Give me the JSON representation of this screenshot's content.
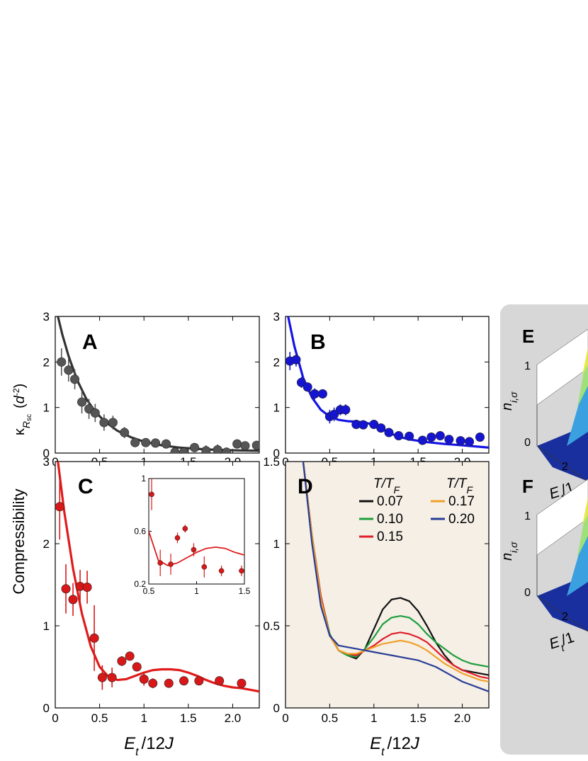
{
  "figure": {
    "ylabel_main": "Compressibility",
    "xlabel_AC": "E_t /12J",
    "xlabel_BD": "E_t /12J"
  },
  "chart_data": [
    {
      "id": "A",
      "type": "scatter",
      "panel_label": "A",
      "xlim": [
        0,
        2.3
      ],
      "ylim": [
        0,
        3
      ],
      "xticks": [
        "0",
        "0.5",
        "1",
        "1.5",
        "2.0"
      ],
      "yticks": [
        "0",
        "1",
        "2",
        "3"
      ],
      "ylabel": "κ_Rsc (d^-2)",
      "color": "#555555",
      "fit_color": "#333333",
      "x": [
        0.07,
        0.15,
        0.22,
        0.3,
        0.38,
        0.45,
        0.55,
        0.65,
        0.78,
        0.9,
        1.02,
        1.13,
        1.25,
        1.35,
        1.45,
        1.57,
        1.7,
        1.83,
        1.93,
        2.05,
        2.14,
        2.27
      ],
      "y": [
        2.0,
        1.82,
        1.62,
        1.12,
        0.97,
        0.88,
        0.67,
        0.67,
        0.45,
        0.23,
        0.23,
        0.22,
        0.2,
        0.02,
        0.02,
        0.12,
        0.05,
        0.07,
        0.02,
        0.2,
        0.16,
        0.17
      ],
      "err": [
        0.3,
        0.25,
        0.22,
        0.25,
        0.22,
        0.2,
        0.18,
        0.15,
        0.12,
        0.1,
        0.08,
        0.08,
        0.08,
        0.06,
        0.06,
        0.1,
        0.12,
        0.12,
        0.1,
        0.08,
        0.08,
        0.08
      ],
      "fit_x": [
        0.03,
        0.08,
        0.15,
        0.25,
        0.35,
        0.45,
        0.55,
        0.7,
        0.85,
        1.0,
        1.2,
        1.4,
        1.7,
        2.0,
        2.3
      ],
      "fit_y": [
        3.0,
        2.6,
        2.13,
        1.59,
        1.19,
        0.91,
        0.71,
        0.49,
        0.35,
        0.25,
        0.17,
        0.12,
        0.08,
        0.06,
        0.05
      ]
    },
    {
      "id": "B",
      "type": "scatter",
      "panel_label": "B",
      "xlim": [
        0,
        2.3
      ],
      "ylim": [
        0,
        3
      ],
      "xticks": [
        "0",
        "0.5",
        "1",
        "1.5",
        "2.0"
      ],
      "yticks": [
        "0",
        "1",
        "2",
        "3"
      ],
      "color": "#1414d2",
      "fit_color": "#1414e6",
      "x": [
        0.05,
        0.12,
        0.18,
        0.25,
        0.33,
        0.42,
        0.5,
        0.55,
        0.62,
        0.68,
        0.8,
        0.88,
        1.0,
        1.08,
        1.17,
        1.28,
        1.4,
        1.55,
        1.65,
        1.75,
        1.85,
        1.98,
        2.08,
        2.2
      ],
      "y": [
        2.02,
        2.05,
        1.55,
        1.45,
        1.3,
        1.3,
        0.8,
        0.85,
        0.95,
        0.95,
        0.63,
        0.62,
        0.63,
        0.55,
        0.45,
        0.38,
        0.37,
        0.28,
        0.35,
        0.38,
        0.3,
        0.27,
        0.25,
        0.35
      ],
      "err": [
        0.2,
        0.15,
        0.12,
        0.1,
        0.12,
        0.1,
        0.15,
        0.15,
        0.12,
        0.12,
        0.1,
        0.08,
        0.08,
        0.08,
        0.06,
        0.06,
        0.06,
        0.05,
        0.05,
        0.05,
        0.05,
        0.05,
        0.05,
        0.05
      ],
      "fit_x": [
        0.03,
        0.1,
        0.2,
        0.3,
        0.4,
        0.5,
        0.6,
        0.7,
        0.8,
        0.9,
        1.0,
        1.1,
        1.2,
        1.3,
        1.4,
        1.6,
        1.8,
        2.0,
        2.3
      ],
      "fit_y": [
        3.0,
        2.35,
        1.65,
        1.22,
        0.95,
        0.8,
        0.73,
        0.7,
        0.69,
        0.67,
        0.62,
        0.52,
        0.42,
        0.35,
        0.3,
        0.24,
        0.2,
        0.17,
        0.12
      ]
    },
    {
      "id": "C",
      "type": "scatter",
      "panel_label": "C",
      "xlim": [
        0,
        2.3
      ],
      "ylim": [
        0,
        3
      ],
      "xticks": [
        "0",
        "0.5",
        "1",
        "1.5",
        "2.0"
      ],
      "yticks": [
        "0",
        "1",
        "2",
        "3"
      ],
      "color": "#d81818",
      "fit_color": "#e01b1b",
      "x": [
        0.05,
        0.12,
        0.2,
        0.28,
        0.36,
        0.44,
        0.53,
        0.64,
        0.75,
        0.84,
        0.92,
        1.0,
        1.1,
        1.28,
        1.45,
        1.62,
        1.85,
        2.1
      ],
      "y": [
        2.45,
        1.45,
        1.32,
        1.48,
        1.47,
        0.85,
        0.37,
        0.37,
        0.57,
        0.63,
        0.5,
        0.35,
        0.3,
        0.3,
        0.33,
        0.33,
        0.33,
        0.3
      ],
      "err": [
        0.4,
        0.3,
        0.2,
        0.2,
        0.2,
        0.4,
        0.15,
        0.12,
        0.06,
        0.05,
        0.05,
        0.08,
        0.06,
        0.05,
        0.05,
        0.05,
        0.05,
        0.05
      ],
      "fit_x": [
        0.03,
        0.1,
        0.2,
        0.3,
        0.4,
        0.5,
        0.6,
        0.7,
        0.8,
        0.9,
        1.0,
        1.1,
        1.2,
        1.3,
        1.4,
        1.5,
        1.6,
        1.7,
        1.8,
        1.9,
        2.0,
        2.1,
        2.2,
        2.3
      ],
      "fit_y": [
        3.0,
        2.4,
        1.7,
        1.15,
        0.75,
        0.5,
        0.38,
        0.34,
        0.35,
        0.39,
        0.43,
        0.46,
        0.47,
        0.47,
        0.46,
        0.43,
        0.39,
        0.34,
        0.3,
        0.27,
        0.25,
        0.24,
        0.22,
        0.2
      ],
      "inset": {
        "xlim": [
          0.5,
          1.5
        ],
        "ylim": [
          0.2,
          1.0
        ],
        "xticks": [
          "0.5",
          "1",
          "1.5"
        ],
        "yticks": [
          "0.2",
          "0.6",
          "1"
        ],
        "x": [
          0.53,
          0.62,
          0.73,
          0.8,
          0.88,
          0.97,
          1.08,
          1.26,
          1.47
        ],
        "y": [
          0.88,
          0.36,
          0.35,
          0.55,
          0.62,
          0.46,
          0.33,
          0.3,
          0.3
        ],
        "err": [
          0.12,
          0.1,
          0.08,
          0.04,
          0.03,
          0.05,
          0.08,
          0.04,
          0.04
        ],
        "fit_x": [
          0.5,
          0.6,
          0.7,
          0.8,
          0.9,
          1.0,
          1.1,
          1.2,
          1.3,
          1.4,
          1.5
        ],
        "fit_y": [
          0.6,
          0.38,
          0.34,
          0.36,
          0.4,
          0.44,
          0.47,
          0.48,
          0.47,
          0.44,
          0.42
        ]
      }
    },
    {
      "id": "D",
      "type": "line",
      "panel_label": "D",
      "xlim": [
        0,
        2.3
      ],
      "ylim": [
        0,
        1.5
      ],
      "xticks": [
        "0",
        "0.5",
        "1",
        "1.5",
        "2.0"
      ],
      "yticks": [
        "0",
        "0.5",
        "1",
        "1.5"
      ],
      "background": "#f5efe6",
      "legend_title": "T/T_F",
      "x": [
        0.2,
        0.3,
        0.4,
        0.5,
        0.6,
        0.7,
        0.8,
        0.9,
        1.0,
        1.1,
        1.2,
        1.3,
        1.4,
        1.5,
        1.6,
        1.7,
        1.8,
        1.9,
        2.0,
        2.1,
        2.2,
        2.3
      ],
      "series": [
        {
          "name": "0.07",
          "color": "#111111",
          "values": [
            1.5,
            1.05,
            0.68,
            0.45,
            0.35,
            0.32,
            0.3,
            0.36,
            0.48,
            0.6,
            0.66,
            0.67,
            0.65,
            0.59,
            0.5,
            0.4,
            0.32,
            0.26,
            0.23,
            0.22,
            0.21,
            0.2
          ]
        },
        {
          "name": "0.10",
          "color": "#1e9e3c",
          "values": [
            1.5,
            1.05,
            0.68,
            0.45,
            0.35,
            0.32,
            0.31,
            0.36,
            0.43,
            0.51,
            0.55,
            0.56,
            0.55,
            0.51,
            0.45,
            0.4,
            0.36,
            0.32,
            0.29,
            0.27,
            0.26,
            0.25
          ]
        },
        {
          "name": "0.15",
          "color": "#e01e28",
          "values": [
            1.5,
            1.05,
            0.68,
            0.44,
            0.35,
            0.33,
            0.32,
            0.35,
            0.38,
            0.42,
            0.45,
            0.46,
            0.45,
            0.43,
            0.4,
            0.35,
            0.3,
            0.26,
            0.23,
            0.21,
            0.19,
            0.18
          ]
        },
        {
          "name": "0.17",
          "color": "#f0a028",
          "values": [
            1.5,
            1.05,
            0.66,
            0.44,
            0.35,
            0.33,
            0.33,
            0.35,
            0.37,
            0.39,
            0.4,
            0.41,
            0.4,
            0.38,
            0.35,
            0.31,
            0.27,
            0.24,
            0.21,
            0.19,
            0.17,
            0.16
          ]
        },
        {
          "name": "0.20",
          "color": "#283c96",
          "values": [
            1.5,
            1.0,
            0.62,
            0.44,
            0.38,
            0.37,
            0.36,
            0.35,
            0.34,
            0.33,
            0.32,
            0.31,
            0.3,
            0.29,
            0.27,
            0.25,
            0.22,
            0.19,
            0.16,
            0.14,
            0.12,
            0.1
          ]
        }
      ]
    }
  ],
  "panels_3d": [
    {
      "id": "E",
      "panel_label": "E",
      "zlabel": "n_i,σ",
      "z_ticks": [
        "0",
        "1"
      ],
      "x_tick": "2",
      "xlabel": "E_t /1"
    },
    {
      "id": "F",
      "panel_label": "F",
      "zlabel": "n_i,σ",
      "z_ticks": [
        "0",
        "1"
      ],
      "x_tick": "2",
      "xlabel": "E_t /1"
    }
  ]
}
